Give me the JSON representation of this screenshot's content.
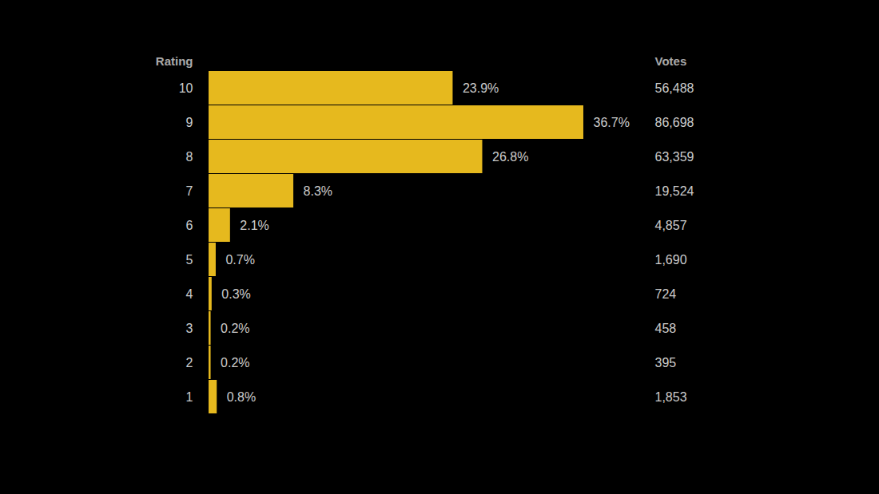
{
  "chart_data": {
    "type": "bar",
    "orientation": "horizontal",
    "ylabel": "Rating",
    "categories": [
      "10",
      "9",
      "8",
      "7",
      "6",
      "5",
      "4",
      "3",
      "2",
      "1"
    ],
    "values": [
      23.9,
      36.7,
      26.8,
      8.3,
      2.1,
      0.7,
      0.3,
      0.2,
      0.2,
      0.8
    ],
    "value_labels": [
      "23.9%",
      "36.7%",
      "26.8%",
      "8.3%",
      "2.1%",
      "0.7%",
      "0.3%",
      "0.2%",
      "0.2%",
      "0.8%"
    ],
    "votes_title": "Votes",
    "votes": [
      56488,
      86698,
      63359,
      19524,
      4857,
      1690,
      724,
      458,
      395,
      1853
    ],
    "votes_labels": [
      "56,488",
      "86,698",
      "63,359",
      "19,524",
      "4,857",
      "1,690",
      "724",
      "458",
      "395",
      "1,853"
    ],
    "color": "#e6b91e",
    "xlim": [
      0,
      36.7
    ],
    "data_labels": true,
    "tick_labels": "y",
    "grid": false
  }
}
